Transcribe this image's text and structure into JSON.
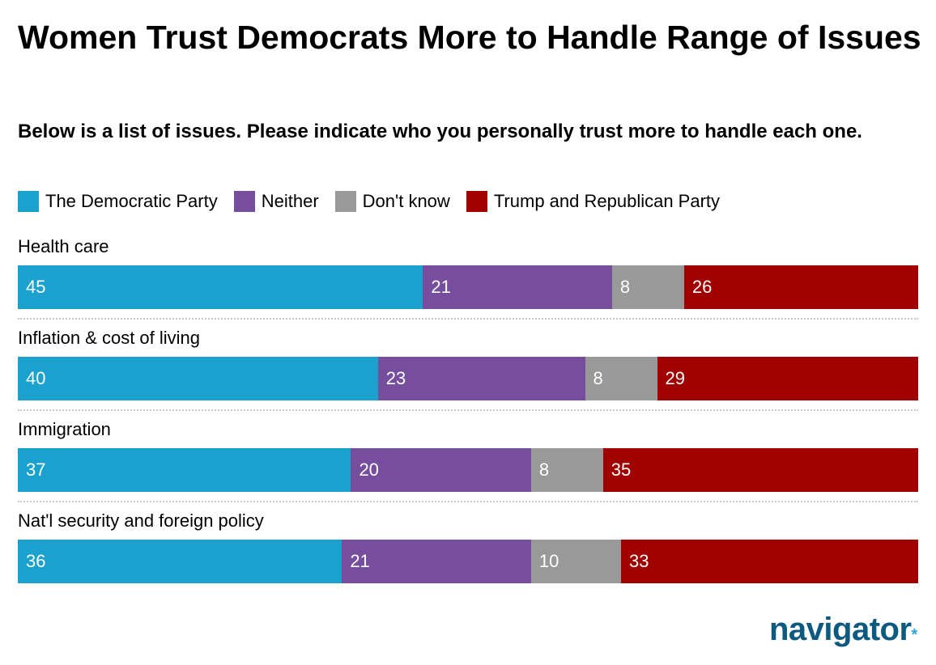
{
  "chart_data": {
    "type": "bar",
    "orientation": "horizontal",
    "stacked": true,
    "title": "Women Trust Democrats More to Handle Range of Issues",
    "subtitle": "Below is a list of issues. Please indicate who you personally trust more to handle each one.",
    "legend_position": "top-left",
    "categories": [
      "Health care",
      "Inflation & cost of living",
      "Immigration",
      "Nat'l security and foreign policy"
    ],
    "series": [
      {
        "name": "The Democratic Party",
        "color": "#1aa1ce",
        "values": [
          45,
          40,
          37,
          36
        ]
      },
      {
        "name": "Neither",
        "color": "#774e9e",
        "values": [
          21,
          23,
          20,
          21
        ]
      },
      {
        "name": "Don't know",
        "color": "#999999",
        "values": [
          8,
          8,
          8,
          10
        ]
      },
      {
        "name": "Trump and Republican Party",
        "color": "#a10000",
        "values": [
          26,
          29,
          35,
          33
        ]
      }
    ],
    "xlim": [
      0,
      100
    ],
    "grid": false
  },
  "logo": {
    "text": "navigator",
    "mark": "*"
  }
}
